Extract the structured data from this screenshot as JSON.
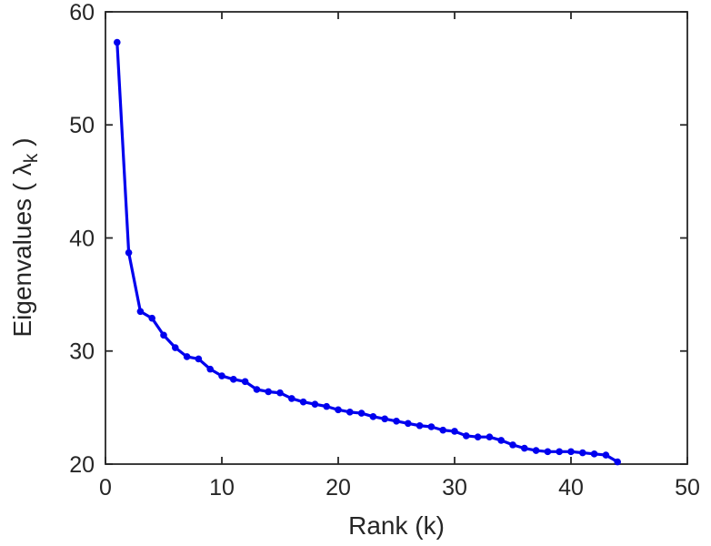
{
  "figure": {
    "background": "#ffffff"
  },
  "chart_data": {
    "type": "line",
    "title": "",
    "xlabel": "Rank (k)",
    "ylabel_main": "Eigenvalues ( λ",
    "ylabel_sub": "k",
    "ylabel_close": " )",
    "xlim": [
      0,
      50
    ],
    "ylim": [
      20,
      60
    ],
    "x_ticks": [
      0,
      10,
      20,
      30,
      40,
      50
    ],
    "y_ticks": [
      20,
      30,
      40,
      50,
      60
    ],
    "grid": false,
    "legend_position": "none",
    "line_color": "#0000ee",
    "axis_color": "#262626",
    "marker": "circle",
    "x": [
      1,
      2,
      3,
      4,
      5,
      6,
      7,
      8,
      9,
      10,
      11,
      12,
      13,
      14,
      15,
      16,
      17,
      18,
      19,
      20,
      21,
      22,
      23,
      24,
      25,
      26,
      27,
      28,
      29,
      30,
      31,
      32,
      33,
      34,
      35,
      36,
      37,
      38,
      39,
      40,
      41,
      42,
      43,
      44
    ],
    "values": [
      57.3,
      38.7,
      33.5,
      32.9,
      31.4,
      30.3,
      29.5,
      29.3,
      28.4,
      27.8,
      27.5,
      27.3,
      26.6,
      26.4,
      26.3,
      25.8,
      25.5,
      25.3,
      25.1,
      24.8,
      24.6,
      24.5,
      24.2,
      24.0,
      23.8,
      23.6,
      23.4,
      23.3,
      23.0,
      22.9,
      22.5,
      22.4,
      22.4,
      22.1,
      21.7,
      21.4,
      21.2,
      21.1,
      21.1,
      21.1,
      21.0,
      20.9,
      20.8,
      20.2
    ]
  }
}
